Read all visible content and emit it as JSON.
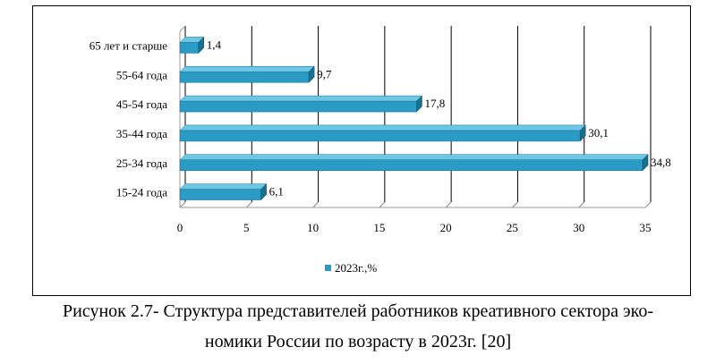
{
  "chart_data": {
    "type": "bar",
    "orientation": "horizontal",
    "categories": [
      "15-24 года",
      "25-34 года",
      "35-44 года",
      "45-54 года",
      "55-64 года",
      "65 лет и старше"
    ],
    "series": [
      {
        "name": "2023г.,%",
        "values": [
          6.1,
          34.8,
          30.1,
          17.8,
          9.7,
          1.4
        ],
        "value_labels": [
          "6,1",
          "34,8",
          "30,1",
          "17,8",
          "9,7",
          "1,4"
        ]
      }
    ],
    "xlim": [
      0,
      35
    ],
    "xticks": [
      "0",
      "5",
      "10",
      "15",
      "20",
      "25",
      "30",
      "35"
    ],
    "grid": "vertical",
    "legend": "bottom",
    "bar_color": "#2a9bc4",
    "bar_color_dark": "#1a6f8f",
    "bar_color_light": "#6cc7e5"
  },
  "caption": {
    "line1": "Рисунок 2.7- Структура представителей работников креативного сектора эко-",
    "line2": "номики России по возрасту в 2023г. [20]"
  }
}
